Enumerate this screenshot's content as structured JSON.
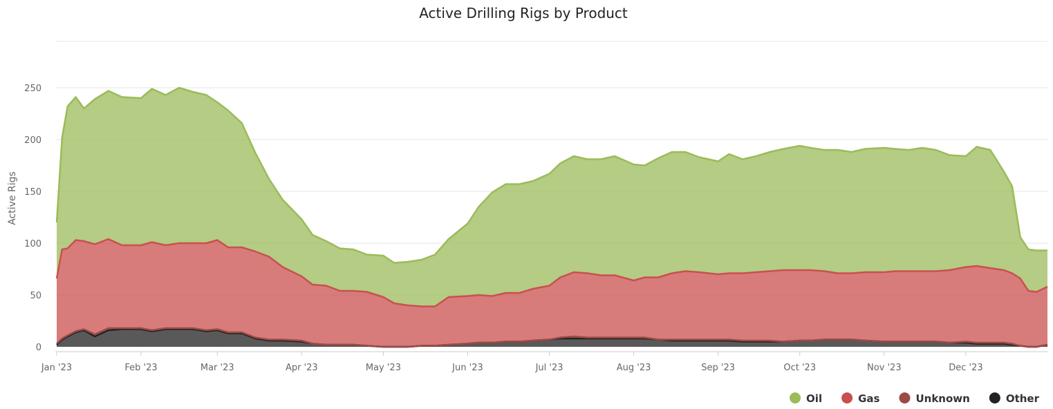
{
  "chart_data": {
    "type": "area",
    "stacked": true,
    "title": "Active Drilling Rigs by Product",
    "xlabel": "",
    "ylabel": "Active Rigs",
    "x_range": [
      "2023-01-01",
      "2023-12-31"
    ],
    "ylim": [
      0,
      250
    ],
    "y_ticks": [
      0,
      50,
      100,
      150,
      200,
      250
    ],
    "x_ticks": [
      {
        "date": "2023-01-01",
        "label": "Jan '23"
      },
      {
        "date": "2023-02-01",
        "label": "Feb '23"
      },
      {
        "date": "2023-03-01",
        "label": "Mar '23"
      },
      {
        "date": "2023-04-01",
        "label": "Apr '23"
      },
      {
        "date": "2023-05-01",
        "label": "May '23"
      },
      {
        "date": "2023-06-01",
        "label": "Jun '23"
      },
      {
        "date": "2023-07-01",
        "label": "Jul '23"
      },
      {
        "date": "2023-08-01",
        "label": "Aug '23"
      },
      {
        "date": "2023-09-01",
        "label": "Sep '23"
      },
      {
        "date": "2023-10-01",
        "label": "Oct '23"
      },
      {
        "date": "2023-11-01",
        "label": "Nov '23"
      },
      {
        "date": "2023-12-01",
        "label": "Dec '23"
      }
    ],
    "grid": true,
    "legend_position": "bottom-right",
    "x": [
      "2023-01-01",
      "2023-01-03",
      "2023-01-05",
      "2023-01-08",
      "2023-01-11",
      "2023-01-15",
      "2023-01-20",
      "2023-01-25",
      "2023-02-01",
      "2023-02-05",
      "2023-02-10",
      "2023-02-15",
      "2023-02-20",
      "2023-02-25",
      "2023-03-01",
      "2023-03-05",
      "2023-03-10",
      "2023-03-15",
      "2023-03-20",
      "2023-03-25",
      "2023-04-01",
      "2023-04-05",
      "2023-04-10",
      "2023-04-15",
      "2023-04-20",
      "2023-04-25",
      "2023-05-01",
      "2023-05-05",
      "2023-05-10",
      "2023-05-15",
      "2023-05-20",
      "2023-05-25",
      "2023-06-01",
      "2023-06-05",
      "2023-06-10",
      "2023-06-15",
      "2023-06-20",
      "2023-06-25",
      "2023-07-01",
      "2023-07-05",
      "2023-07-10",
      "2023-07-15",
      "2023-07-20",
      "2023-07-25",
      "2023-08-01",
      "2023-08-05",
      "2023-08-10",
      "2023-08-15",
      "2023-08-20",
      "2023-08-25",
      "2023-09-01",
      "2023-09-05",
      "2023-09-10",
      "2023-09-15",
      "2023-09-20",
      "2023-09-25",
      "2023-10-01",
      "2023-10-05",
      "2023-10-10",
      "2023-10-15",
      "2023-10-20",
      "2023-10-25",
      "2023-11-01",
      "2023-11-05",
      "2023-11-10",
      "2023-11-15",
      "2023-11-20",
      "2023-11-25",
      "2023-12-01",
      "2023-12-05",
      "2023-12-10",
      "2023-12-15",
      "2023-12-18",
      "2023-12-21",
      "2023-12-24",
      "2023-12-27",
      "2023-12-31"
    ],
    "series": [
      {
        "name": "Other",
        "color": "#222222",
        "values": [
          2,
          7,
          10,
          14,
          16,
          10,
          16,
          17,
          17,
          15,
          17,
          17,
          17,
          15,
          16,
          13,
          13,
          8,
          6,
          6,
          5,
          3,
          2,
          2,
          2,
          1,
          0,
          0,
          0,
          1,
          1,
          2,
          3,
          4,
          4,
          5,
          5,
          6,
          7,
          8,
          8,
          8,
          8,
          8,
          8,
          8,
          7,
          6,
          6,
          6,
          6,
          6,
          5,
          5,
          5,
          5,
          6,
          6,
          7,
          7,
          7,
          6,
          5,
          5,
          5,
          5,
          5,
          4,
          4,
          3,
          3,
          3,
          2,
          1,
          0,
          0,
          2
        ]
      },
      {
        "name": "Unknown",
        "color": "#9c4a45",
        "values": [
          1,
          1,
          1,
          1,
          1,
          2,
          2,
          1,
          1,
          1,
          1,
          1,
          1,
          1,
          1,
          1,
          1,
          1,
          1,
          1,
          1,
          0,
          0,
          0,
          0,
          0,
          0,
          0,
          0,
          0,
          0,
          0,
          0,
          0,
          0,
          0,
          0,
          0,
          0,
          1,
          2,
          1,
          1,
          1,
          1,
          1,
          0,
          1,
          1,
          1,
          1,
          1,
          1,
          1,
          1,
          0,
          0,
          0,
          0,
          0,
          0,
          0,
          0,
          0,
          0,
          0,
          0,
          0,
          1,
          1,
          1,
          1,
          1,
          0,
          0,
          0,
          0
        ]
      },
      {
        "name": "Gas",
        "color": "#c9504f",
        "values": [
          63,
          86,
          84,
          88,
          85,
          87,
          86,
          80,
          80,
          85,
          80,
          82,
          82,
          84,
          86,
          82,
          82,
          83,
          80,
          70,
          62,
          57,
          57,
          52,
          52,
          52,
          48,
          42,
          40,
          38,
          38,
          46,
          46,
          46,
          45,
          47,
          47,
          50,
          52,
          58,
          62,
          62,
          60,
          60,
          55,
          58,
          60,
          64,
          66,
          65,
          63,
          64,
          65,
          66,
          67,
          69,
          68,
          68,
          66,
          64,
          64,
          66,
          67,
          68,
          68,
          68,
          68,
          70,
          72,
          74,
          72,
          70,
          68,
          65,
          54,
          53,
          56
        ]
      },
      {
        "name": "Oil",
        "color": "#9bbb59",
        "values": [
          54,
          108,
          137,
          138,
          128,
          140,
          143,
          143,
          142,
          148,
          145,
          150,
          146,
          143,
          133,
          132,
          120,
          95,
          75,
          65,
          55,
          48,
          43,
          41,
          40,
          36,
          40,
          39,
          42,
          45,
          50,
          56,
          70,
          85,
          100,
          105,
          105,
          104,
          108,
          110,
          112,
          110,
          112,
          115,
          112,
          108,
          115,
          117,
          115,
          111,
          109,
          115,
          110,
          112,
          115,
          117,
          120,
          118,
          117,
          119,
          117,
          119,
          120,
          118,
          117,
          119,
          117,
          111,
          107,
          115,
          114,
          95,
          84,
          40,
          40,
          40,
          35
        ]
      }
    ]
  },
  "legend": {
    "items": [
      {
        "label": "Oil",
        "color": "#9bbb59"
      },
      {
        "label": "Gas",
        "color": "#c9504f"
      },
      {
        "label": "Unknown",
        "color": "#9c4a45"
      },
      {
        "label": "Other",
        "color": "#222222"
      }
    ]
  }
}
